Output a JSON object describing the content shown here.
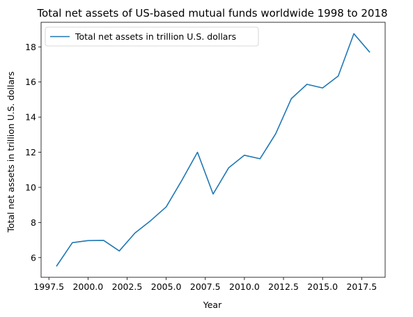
{
  "chart_data": {
    "type": "line",
    "title": "Total net assets of US-based mutual funds worldwide 1998 to 2018",
    "xlabel": "Year",
    "ylabel": "Total net assets in trillion U.S. dollars",
    "xlim": [
      1997.0,
      2019.0
    ],
    "ylim": [
      4.88,
      19.4
    ],
    "x_ticks": [
      1997.5,
      2000.0,
      2002.5,
      2005.0,
      2007.5,
      2010.0,
      2012.5,
      2015.0,
      2017.5
    ],
    "y_ticks": [
      6,
      8,
      10,
      12,
      14,
      16,
      18
    ],
    "grid": false,
    "legend_position": "top-left",
    "series": [
      {
        "name": "Total net assets in trillion U.S. dollars",
        "color": "#1f77b4",
        "x": [
          1998,
          1999,
          2000,
          2001,
          2002,
          2003,
          2004,
          2005,
          2006,
          2007,
          2008,
          2009,
          2010,
          2011,
          2012,
          2013,
          2014,
          2015,
          2016,
          2017,
          2018
        ],
        "values": [
          5.53,
          6.85,
          6.97,
          6.98,
          6.38,
          7.4,
          8.1,
          8.89,
          10.4,
          12.0,
          9.62,
          11.12,
          11.83,
          11.63,
          13.05,
          15.05,
          15.87,
          15.66,
          16.34,
          18.75,
          17.71
        ]
      }
    ]
  }
}
